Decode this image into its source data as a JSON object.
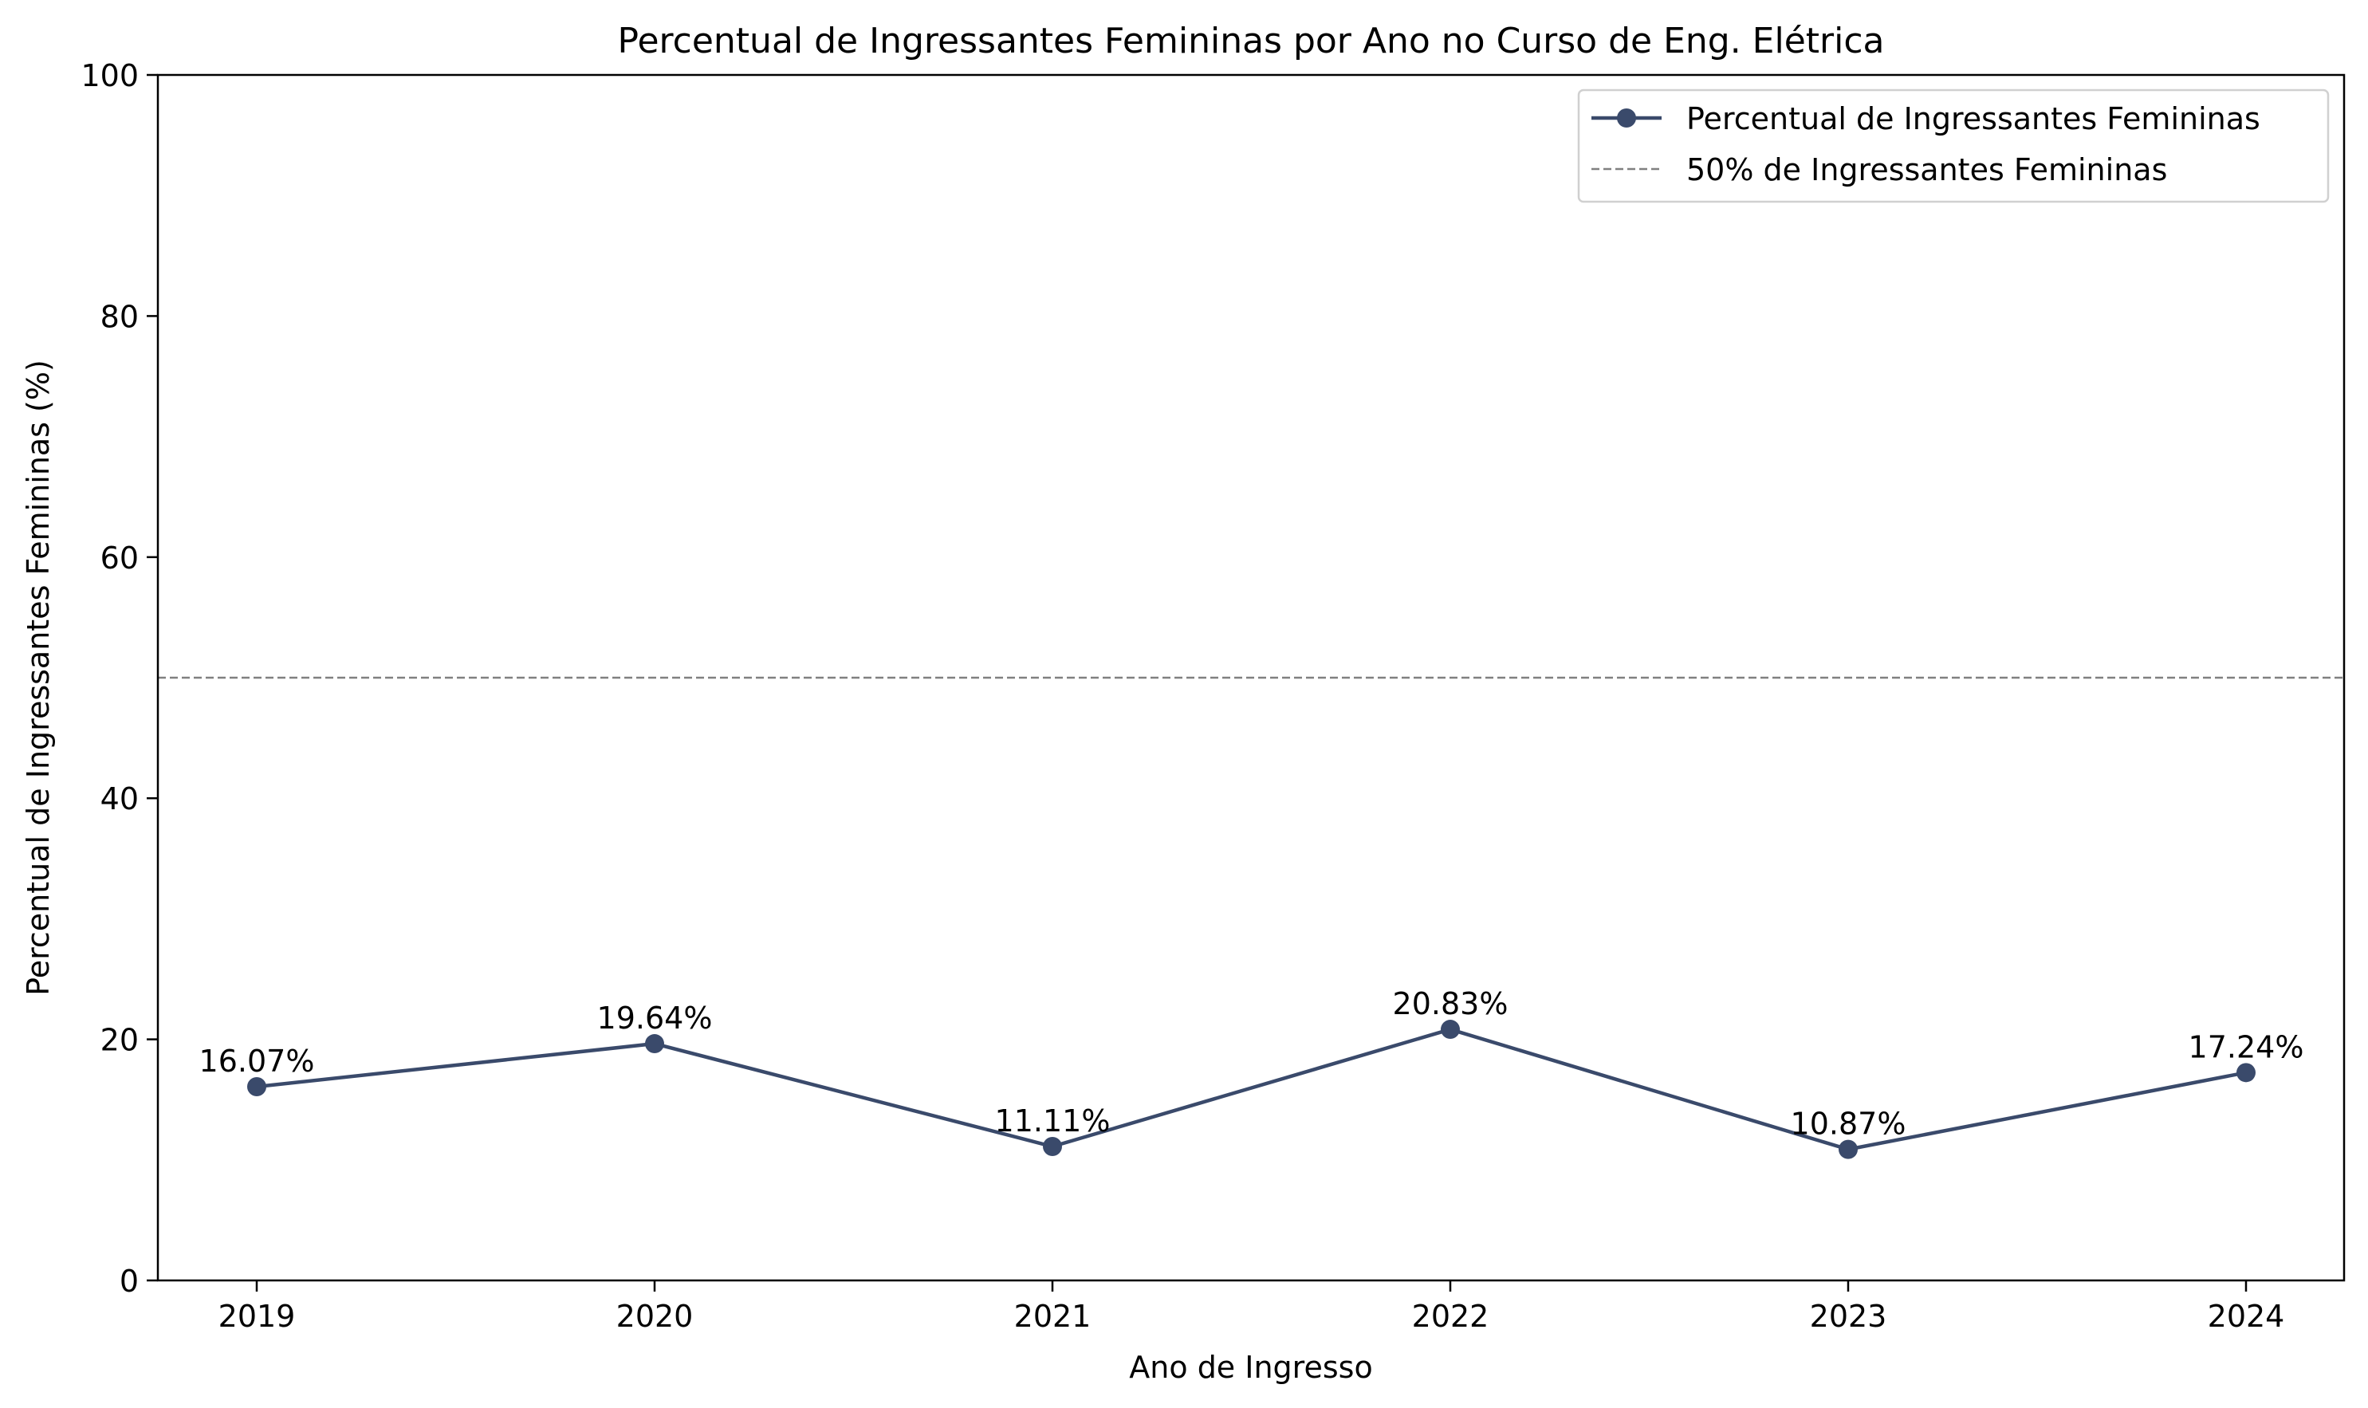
{
  "chart_data": {
    "type": "line",
    "title": "Percentual de Ingressantes Femininas por Ano no Curso de Eng. Elétrica",
    "xlabel": "Ano de Ingresso",
    "ylabel": "Percentual de Ingressantes Femininas (%)",
    "categories": [
      "2019",
      "2020",
      "2021",
      "2022",
      "2023",
      "2024"
    ],
    "series": [
      {
        "name": "Percentual de Ingressantes Femininas",
        "values": [
          16.07,
          19.64,
          11.11,
          20.83,
          10.87,
          17.24
        ],
        "labels": [
          "16.07%",
          "19.64%",
          "11.11%",
          "20.83%",
          "10.87%",
          "17.24%"
        ],
        "color": "#3a4a6b",
        "marker": "circle",
        "line_style": "solid"
      }
    ],
    "reference_lines": [
      {
        "name": "50% de Ingressantes Femininas",
        "y": 50,
        "color": "#808080",
        "line_style": "dashed"
      }
    ],
    "ylim": [
      0,
      100
    ],
    "yticks": [
      0,
      20,
      40,
      60,
      80,
      100
    ],
    "ytick_labels": [
      "0",
      "20",
      "40",
      "60",
      "80",
      "100"
    ],
    "grid": false,
    "legend_position": "top-right"
  }
}
